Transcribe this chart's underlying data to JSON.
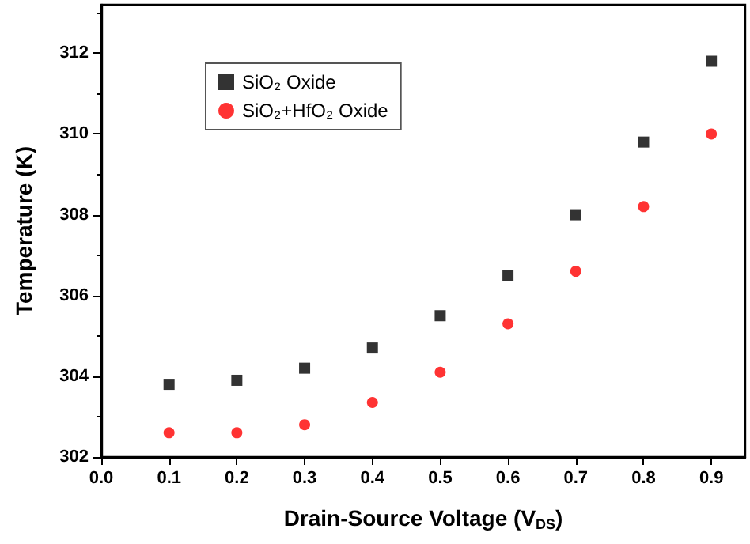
{
  "chart_data": {
    "type": "scatter",
    "xlabel": "Drain-Source Voltage (V$_{DS}$)",
    "ylabel": "Temperature (K)",
    "x": [
      0.1,
      0.2,
      0.3,
      0.4,
      0.5,
      0.6,
      0.7,
      0.8,
      0.9
    ],
    "series": [
      {
        "name": "SiO₂ Oxide",
        "color": "#000000",
        "marker": "square",
        "values": [
          303.8,
          303.9,
          304.2,
          304.7,
          305.5,
          306.5,
          308.0,
          309.8,
          311.8
        ]
      },
      {
        "name": "SiO₂+HfO₂ Oxide",
        "color": "#ff0000",
        "marker": "circle",
        "values": [
          302.6,
          302.6,
          302.8,
          303.35,
          304.1,
          305.3,
          306.6,
          308.2,
          310.0
        ]
      }
    ],
    "xlim": [
      0,
      0.95
    ],
    "xticks": [
      {
        "value": 0,
        "label": "0.0"
      },
      0.1,
      0.2,
      0.3,
      0.4,
      0.5,
      0.6,
      0.7,
      0.8,
      0.9
    ],
    "ylim": [
      302,
      313.2
    ],
    "yticks": [
      302,
      304,
      306,
      308,
      310,
      312
    ],
    "grid": false,
    "legend": "top left"
  }
}
